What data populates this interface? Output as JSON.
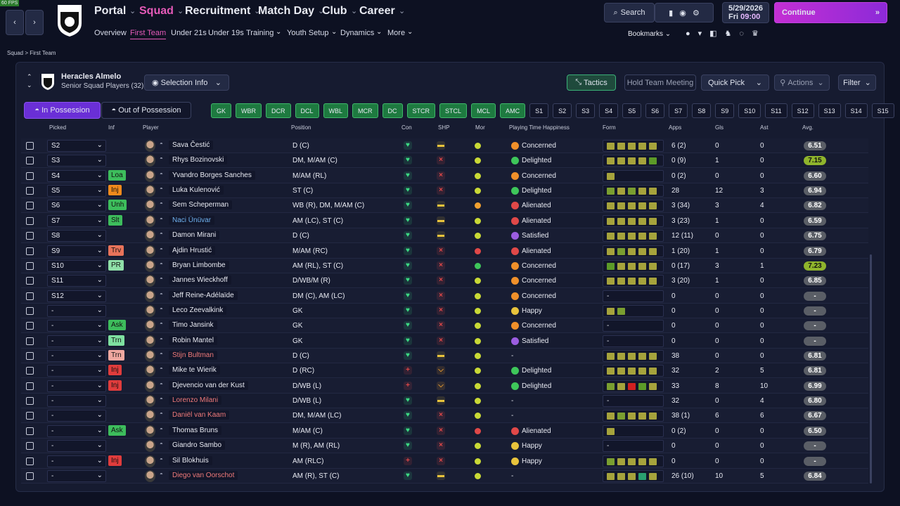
{
  "fps": "60 FPS",
  "nav": {
    "main": [
      "Portal",
      "Squad",
      "Recruitment",
      "Match Day",
      "Club",
      "Career"
    ],
    "sub": [
      "Overview",
      "First Team",
      "Under 21s",
      "Under 19s",
      "Training",
      "Youth Setup",
      "Dynamics",
      "More"
    ]
  },
  "top": {
    "search": "Search",
    "date": "5/29/2026",
    "day": "Fri",
    "time": "09:00",
    "continue": "Continue",
    "bookmarks": "Bookmarks"
  },
  "breadcrumb": [
    "Squad",
    "First Team"
  ],
  "team": {
    "name": "Heracles Almelo",
    "subtitle": "Senior Squad Players (32)",
    "selection": "Selection Info"
  },
  "buttons": {
    "tactics": "Tactics",
    "meeting": "Hold Team Meeting",
    "quick_pick": "Quick Pick",
    "actions": "Actions",
    "filter": "Filter"
  },
  "tabs": [
    "In Possession",
    "Out of Possession"
  ],
  "positions": [
    "GK",
    "WBR",
    "DCR",
    "DCL",
    "WBL",
    "MCR",
    "DC",
    "STCR",
    "STCL",
    "MCL",
    "AMC"
  ],
  "slots": [
    "S1",
    "S2",
    "S3",
    "S4",
    "S5",
    "S6",
    "S7",
    "S8",
    "S9",
    "S10",
    "S11",
    "S12",
    "S13",
    "S14",
    "S15"
  ],
  "columns": [
    "Picked",
    "Inf",
    "Player",
    "Position",
    "Con",
    "SHP",
    "Mor",
    "Playing Time Happiness",
    "Form",
    "Apps",
    "Gls",
    "Ast",
    "Avg."
  ],
  "rows": [
    {
      "picked": "S2",
      "inf": null,
      "player": "Sava Čestić",
      "position": "D (C)",
      "con": "#3ddc84",
      "shp": "#e8c33c",
      "mor": "#c9d936",
      "pth": "Concerned",
      "pth_color": "#f0902a",
      "form": [
        "#a6a33c",
        "#a6a33c",
        "#a6a33c",
        "#a6a33c",
        "#a6a33c"
      ],
      "apps": "6 (2)",
      "gls": 0,
      "ast": 0,
      "avg": "6.51"
    },
    {
      "picked": "S3",
      "inf": null,
      "player": "Rhys Bozinovski",
      "position": "DM, M/AM (C)",
      "con": "#3ddc84",
      "shp": "#e04848",
      "mor": "#c9d936",
      "pth": "Delighted",
      "pth_color": "#3ec65a",
      "form": [
        "#a6a33c",
        "#a6a33c",
        "#a6a33c",
        "#a6a33c",
        "#5c9a28"
      ],
      "apps": "0 (9)",
      "gls": 1,
      "ast": 0,
      "avg": "7.15",
      "avg_color": "#8fb42c"
    },
    {
      "picked": "S4",
      "inf": {
        "text": "Loa",
        "color": "#3dbd5c"
      },
      "player": "Yvandro Borges Sanches",
      "position": "M/AM (RL)",
      "con": "#3ddc84",
      "shp": "#e04848",
      "mor": "#c9d936",
      "pth": "Concerned",
      "pth_color": "#f0902a",
      "form": [
        "#a6a33c"
      ],
      "apps": "0 (2)",
      "gls": 0,
      "ast": 0,
      "avg": "6.60"
    },
    {
      "picked": "S5",
      "inf": {
        "text": "Inj",
        "color": "#f08a1c"
      },
      "player": "Luka Kulenović",
      "position": "ST (C)",
      "con": "#3ddc84",
      "shp": "#e04848",
      "mor": "#c9d936",
      "pth": "Delighted",
      "pth_color": "#3ec65a",
      "form": [
        "#7a9e30",
        "#a6a33c",
        "#7a9e30",
        "#a6a33c",
        "#a6a33c"
      ],
      "apps": "28",
      "gls": 12,
      "ast": 3,
      "avg": "6.94"
    },
    {
      "picked": "S6",
      "inf": {
        "text": "Unh",
        "color": "#3dbd5c"
      },
      "player": "Sem Scheperman",
      "position": "WB (R), DM, M/AM (C)",
      "con": "#3ddc84",
      "shp": "#e8c33c",
      "mor": "#f0a030",
      "pth": "Alienated",
      "pth_color": "#e04848",
      "form": [
        "#a6a33c",
        "#a6a33c",
        "#a6a33c",
        "#a6a33c",
        "#a6a33c"
      ],
      "apps": "3 (34)",
      "gls": 3,
      "ast": 4,
      "avg": "6.82"
    },
    {
      "picked": "S7",
      "inf": {
        "text": "Slt",
        "color": "#3dbd5c"
      },
      "player": "Naci Ünüvar",
      "name_color": "#6fb2f0",
      "position": "AM (LC), ST (C)",
      "con": "#3ddc84",
      "shp": "#e8c33c",
      "mor": "#c9d936",
      "pth": "Alienated",
      "pth_color": "#e04848",
      "form": [
        "#a6a33c",
        "#a6a33c",
        "#a6a33c",
        "#a6a33c",
        "#a6a33c"
      ],
      "apps": "3 (23)",
      "gls": 1,
      "ast": 0,
      "avg": "6.59"
    },
    {
      "picked": "S8",
      "inf": null,
      "player": "Damon Mirani",
      "position": "D (C)",
      "con": "#3ddc84",
      "shp": "#e8c33c",
      "mor": "#c9d936",
      "pth": "Satisfied",
      "pth_color": "#9b5de0",
      "form": [
        "#a6a33c",
        "#a6a33c",
        "#a6a33c",
        "#a6a33c",
        "#a6a33c"
      ],
      "apps": "12 (11)",
      "gls": 0,
      "ast": 0,
      "avg": "6.75"
    },
    {
      "picked": "S9",
      "inf": {
        "text": "Trv",
        "color": "#e8735a"
      },
      "player": "Ajdin Hrustić",
      "position": "M/AM (RC)",
      "con": "#3ddc84",
      "shp": "#e04848",
      "mor": "#e04848",
      "pth": "Alienated",
      "pth_color": "#e04848",
      "form": [
        "#a6a33c",
        "#7a9e30",
        "#a6a33c",
        "#a6a33c",
        "#a6a33c"
      ],
      "apps": "1 (20)",
      "gls": 1,
      "ast": 0,
      "avg": "6.79"
    },
    {
      "picked": "S10",
      "inf": {
        "text": "PR",
        "color": "#8fe0a8"
      },
      "player": "Bryan Limbombe",
      "position": "AM (RL), ST (C)",
      "con": "#3ddc84",
      "shp": "#e04848",
      "mor": "#3ec65a",
      "pth": "Concerned",
      "pth_color": "#f0902a",
      "form": [
        "#5c9a28",
        "#a6a33c",
        "#a6a33c",
        "#a6a33c",
        "#a6a33c"
      ],
      "apps": "0 (17)",
      "gls": 3,
      "ast": 1,
      "avg": "7.23",
      "avg_color": "#8fb42c"
    },
    {
      "picked": "S11",
      "inf": null,
      "player": "Jannes Wieckhoff",
      "position": "D/WB/M (R)",
      "con": "#3ddc84",
      "shp": "#e04848",
      "mor": "#c9d936",
      "pth": "Concerned",
      "pth_color": "#f0902a",
      "form": [
        "#a6a33c",
        "#a6a33c",
        "#a6a33c",
        "#a6a33c",
        "#a6a33c"
      ],
      "apps": "3 (20)",
      "gls": 1,
      "ast": 0,
      "avg": "6.85"
    },
    {
      "picked": "S12",
      "inf": null,
      "player": "Jeff Reine-Adélaïde",
      "position": "DM (C), AM (LC)",
      "con": "#3ddc84",
      "shp": "#e04848",
      "mor": "#c9d936",
      "pth": "Concerned",
      "pth_color": "#f0902a",
      "form": "-",
      "apps": "0",
      "gls": 0,
      "ast": 0,
      "avg": "-"
    },
    {
      "picked": "-",
      "inf": null,
      "player": "Leco Zeevalkink",
      "position": "GK",
      "con": "#3ddc84",
      "shp": "#e04848",
      "mor": "#c9d936",
      "pth": "Happy",
      "pth_color": "#e8c33c",
      "form": [
        "#a6a33c",
        "#7a9e30"
      ],
      "apps": "0",
      "gls": 0,
      "ast": 0,
      "avg": "-"
    },
    {
      "picked": "-",
      "inf": {
        "text": "Ask",
        "color": "#3dbd5c"
      },
      "player": "Timo Jansink",
      "position": "GK",
      "con": "#3ddc84",
      "shp": "#e04848",
      "mor": "#c9d936",
      "pth": "Concerned",
      "pth_color": "#f0902a",
      "form": "-",
      "apps": "0",
      "gls": 0,
      "ast": 0,
      "avg": "-"
    },
    {
      "picked": "-",
      "inf": {
        "text": "Trn",
        "color": "#7ee0a0"
      },
      "player": "Robin Mantel",
      "position": "GK",
      "con": "#3ddc84",
      "shp": "#e04848",
      "mor": "#c9d936",
      "pth": "Satisfied",
      "pth_color": "#9b5de0",
      "form": "-",
      "apps": "0",
      "gls": 0,
      "ast": 0,
      "avg": "-"
    },
    {
      "picked": "-",
      "inf": {
        "text": "Trn",
        "color": "#f0a8a0"
      },
      "player": "Stijn Bultman",
      "name_color": "#f07a7a",
      "position": "D (C)",
      "con": "#3ddc84",
      "shp": "#e8c33c",
      "mor": "#c9d936",
      "pth": "-",
      "form": [
        "#a6a33c",
        "#a6a33c",
        "#a6a33c",
        "#a6a33c",
        "#a6a33c"
      ],
      "apps": "38",
      "gls": 0,
      "ast": 0,
      "avg": "6.81"
    },
    {
      "picked": "-",
      "inf": {
        "text": "Inj",
        "color": "#e03c3c"
      },
      "player": "Mike te Wierik",
      "position": "D (RC)",
      "con": "#e04848",
      "shp": "#f0a030",
      "mor": "#c9d936",
      "pth": "Delighted",
      "pth_color": "#3ec65a",
      "form": [
        "#a6a33c",
        "#a6a33c",
        "#a6a33c",
        "#a6a33c",
        "#a6a33c"
      ],
      "apps": "32",
      "gls": 2,
      "ast": 5,
      "avg": "6.81"
    },
    {
      "picked": "-",
      "inf": {
        "text": "Inj",
        "color": "#e03c3c"
      },
      "player": "Djevencio van der Kust",
      "position": "D/WB (L)",
      "con": "#e04848",
      "shp": "#f0a030",
      "mor": "#c9d936",
      "pth": "Delighted",
      "pth_color": "#3ec65a",
      "form": [
        "#7a9e30",
        "#a6a33c",
        "#d02020",
        "#5c9a28",
        "#a6a33c"
      ],
      "apps": "33",
      "gls": 8,
      "ast": 10,
      "avg": "6.99"
    },
    {
      "picked": "-",
      "inf": null,
      "player": "Lorenzo Milani",
      "name_color": "#f07a7a",
      "position": "D/WB (L)",
      "con": "#3ddc84",
      "shp": "#e8c33c",
      "mor": "#c9d936",
      "pth": "-",
      "form": "-",
      "apps": "32",
      "gls": 0,
      "ast": 4,
      "avg": "6.80"
    },
    {
      "picked": "-",
      "inf": null,
      "player": "Daniël van Kaam",
      "name_color": "#f07a7a",
      "position": "DM, M/AM (LC)",
      "con": "#3ddc84",
      "shp": "#e04848",
      "mor": "#c9d936",
      "pth": "-",
      "form": [
        "#a6a33c",
        "#7a9e30",
        "#a6a33c",
        "#a6a33c",
        "#a6a33c"
      ],
      "apps": "38 (1)",
      "gls": 6,
      "ast": 6,
      "avg": "6.67"
    },
    {
      "picked": "-",
      "inf": {
        "text": "Ask",
        "color": "#3dbd5c"
      },
      "player": "Thomas Bruns",
      "position": "M/AM (C)",
      "con": "#3ddc84",
      "shp": "#e04848",
      "mor": "#e04848",
      "pth": "Alienated",
      "pth_color": "#e04848",
      "form": [
        "#a6a33c"
      ],
      "apps": "0 (2)",
      "gls": 0,
      "ast": 0,
      "avg": "6.50"
    },
    {
      "picked": "-",
      "inf": null,
      "player": "Giandro Sambo",
      "position": "M (R), AM (RL)",
      "con": "#3ddc84",
      "shp": "#e04848",
      "mor": "#c9d936",
      "pth": "Happy",
      "pth_color": "#e8c33c",
      "form": "-",
      "apps": "0",
      "gls": 0,
      "ast": 0,
      "avg": "-"
    },
    {
      "picked": "-",
      "inf": {
        "text": "Inj",
        "color": "#e03c3c"
      },
      "player": "Sil Blokhuis",
      "position": "AM (RLC)",
      "con": "#e04848",
      "shp": "#e04848",
      "mor": "#c9d936",
      "pth": "Happy",
      "pth_color": "#e8c33c",
      "form": [
        "#7a9e30",
        "#a6a33c",
        "#a6a33c",
        "#a6a33c",
        "#a6a33c"
      ],
      "apps": "0",
      "gls": 0,
      "ast": 0,
      "avg": "-"
    },
    {
      "picked": "-",
      "inf": null,
      "player": "Diego van Oorschot",
      "name_color": "#f07a7a",
      "position": "AM (R), ST (C)",
      "con": "#3ddc84",
      "shp": "#e8c33c",
      "mor": "#c9d936",
      "pth": "-",
      "form": [
        "#a6a33c",
        "#a6a33c",
        "#a6a33c",
        "#2aa070",
        "#a6a33c"
      ],
      "apps": "26 (10)",
      "gls": 10,
      "ast": 5,
      "avg": "6.84"
    }
  ]
}
